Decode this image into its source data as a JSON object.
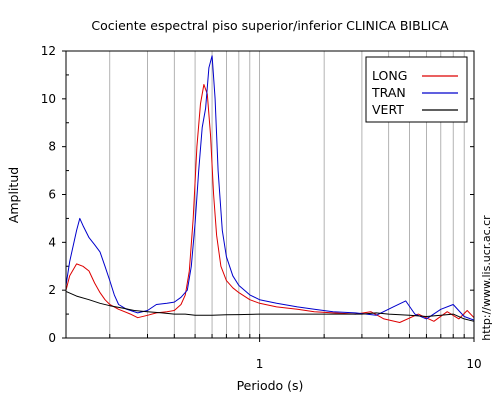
{
  "chart_data": {
    "type": "line",
    "title": "Cociente espectral piso superior/inferior  CLINICA BIBLICA",
    "xlabel": "Periodo (s)",
    "ylabel": "Amplitud",
    "x_scale": "log",
    "xlim": [
      0.125,
      10
    ],
    "ylim": [
      0,
      12
    ],
    "x_ticks": [
      1,
      10
    ],
    "y_ticks": [
      0,
      2,
      4,
      6,
      8,
      10,
      12
    ],
    "grid": "vertical log minor gridlines",
    "legend_position": "top-right",
    "side_text": "http://www.lis.ucr.ac.cr",
    "colors": {
      "LONG": "#dd0000",
      "TRAN": "#0000cc",
      "VERT": "#000000"
    },
    "series": [
      {
        "name": "LONG",
        "color": "#dd0000",
        "points": [
          [
            0.125,
            2.0
          ],
          [
            0.13,
            2.6
          ],
          [
            0.14,
            3.1
          ],
          [
            0.15,
            3.0
          ],
          [
            0.16,
            2.8
          ],
          [
            0.17,
            2.3
          ],
          [
            0.18,
            1.9
          ],
          [
            0.19,
            1.6
          ],
          [
            0.2,
            1.4
          ],
          [
            0.22,
            1.2
          ],
          [
            0.25,
            1.0
          ],
          [
            0.27,
            0.85
          ],
          [
            0.3,
            0.95
          ],
          [
            0.33,
            1.05
          ],
          [
            0.37,
            1.1
          ],
          [
            0.4,
            1.15
          ],
          [
            0.43,
            1.4
          ],
          [
            0.45,
            1.8
          ],
          [
            0.47,
            2.8
          ],
          [
            0.49,
            5.0
          ],
          [
            0.51,
            8.0
          ],
          [
            0.53,
            9.8
          ],
          [
            0.55,
            10.6
          ],
          [
            0.57,
            10.2
          ],
          [
            0.59,
            8.5
          ],
          [
            0.61,
            6.0
          ],
          [
            0.63,
            4.3
          ],
          [
            0.66,
            3.0
          ],
          [
            0.7,
            2.4
          ],
          [
            0.75,
            2.1
          ],
          [
            0.8,
            1.9
          ],
          [
            0.9,
            1.6
          ],
          [
            1.0,
            1.45
          ],
          [
            1.2,
            1.3
          ],
          [
            1.5,
            1.2
          ],
          [
            1.8,
            1.1
          ],
          [
            2.2,
            1.05
          ],
          [
            2.8,
            1.0
          ],
          [
            3.3,
            1.1
          ],
          [
            3.8,
            0.8
          ],
          [
            4.5,
            0.65
          ],
          [
            5.5,
            1.0
          ],
          [
            6.5,
            0.7
          ],
          [
            7.5,
            1.1
          ],
          [
            8.5,
            0.8
          ],
          [
            9.3,
            1.15
          ],
          [
            10.0,
            0.85
          ]
        ]
      },
      {
        "name": "TRAN",
        "color": "#0000cc",
        "points": [
          [
            0.125,
            2.2
          ],
          [
            0.13,
            3.2
          ],
          [
            0.14,
            4.5
          ],
          [
            0.145,
            5.0
          ],
          [
            0.15,
            4.7
          ],
          [
            0.16,
            4.2
          ],
          [
            0.17,
            3.9
          ],
          [
            0.18,
            3.6
          ],
          [
            0.19,
            3.0
          ],
          [
            0.2,
            2.4
          ],
          [
            0.21,
            1.8
          ],
          [
            0.22,
            1.4
          ],
          [
            0.24,
            1.2
          ],
          [
            0.27,
            1.05
          ],
          [
            0.3,
            1.15
          ],
          [
            0.33,
            1.4
          ],
          [
            0.37,
            1.45
          ],
          [
            0.4,
            1.5
          ],
          [
            0.43,
            1.7
          ],
          [
            0.46,
            2.0
          ],
          [
            0.48,
            3.0
          ],
          [
            0.5,
            4.8
          ],
          [
            0.52,
            7.0
          ],
          [
            0.54,
            8.8
          ],
          [
            0.56,
            9.6
          ],
          [
            0.58,
            11.3
          ],
          [
            0.6,
            11.8
          ],
          [
            0.62,
            10.0
          ],
          [
            0.64,
            7.0
          ],
          [
            0.67,
            4.5
          ],
          [
            0.7,
            3.4
          ],
          [
            0.75,
            2.6
          ],
          [
            0.8,
            2.2
          ],
          [
            0.9,
            1.8
          ],
          [
            1.0,
            1.6
          ],
          [
            1.2,
            1.45
          ],
          [
            1.5,
            1.3
          ],
          [
            1.8,
            1.2
          ],
          [
            2.2,
            1.1
          ],
          [
            2.8,
            1.05
          ],
          [
            3.5,
            0.95
          ],
          [
            4.2,
            1.3
          ],
          [
            4.8,
            1.55
          ],
          [
            5.3,
            1.0
          ],
          [
            6.0,
            0.8
          ],
          [
            7.0,
            1.2
          ],
          [
            8.0,
            1.4
          ],
          [
            9.0,
            0.9
          ],
          [
            10.0,
            0.75
          ]
        ]
      },
      {
        "name": "VERT",
        "color": "#000000",
        "points": [
          [
            0.125,
            1.95
          ],
          [
            0.14,
            1.75
          ],
          [
            0.16,
            1.6
          ],
          [
            0.18,
            1.45
          ],
          [
            0.2,
            1.35
          ],
          [
            0.23,
            1.25
          ],
          [
            0.26,
            1.15
          ],
          [
            0.3,
            1.1
          ],
          [
            0.35,
            1.05
          ],
          [
            0.4,
            1.0
          ],
          [
            0.45,
            1.0
          ],
          [
            0.5,
            0.95
          ],
          [
            0.6,
            0.95
          ],
          [
            0.7,
            0.97
          ],
          [
            0.8,
            0.98
          ],
          [
            1.0,
            1.0
          ],
          [
            1.5,
            1.0
          ],
          [
            2.0,
            1.0
          ],
          [
            2.5,
            1.0
          ],
          [
            3.0,
            1.0
          ],
          [
            3.5,
            1.05
          ],
          [
            4.0,
            1.0
          ],
          [
            5.0,
            0.95
          ],
          [
            6.0,
            0.9
          ],
          [
            7.0,
            0.95
          ],
          [
            8.0,
            1.0
          ],
          [
            9.0,
            0.8
          ],
          [
            10.0,
            0.7
          ]
        ]
      }
    ]
  }
}
